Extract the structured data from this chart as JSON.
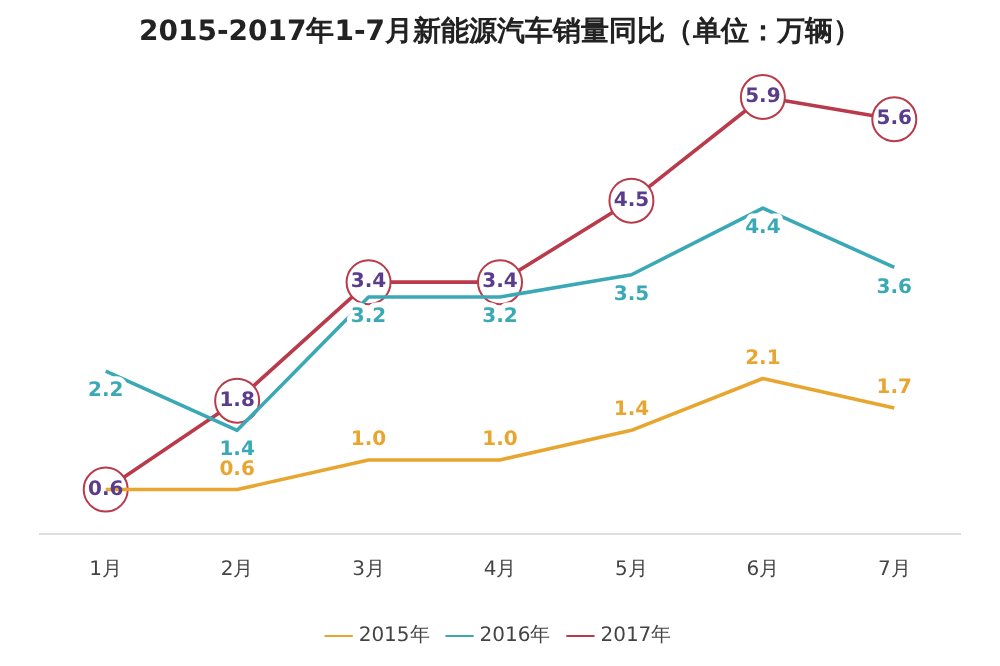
{
  "chart_data": {
    "type": "line",
    "title": "2015-2017年1-7月新能源汽车销量同比（单位：万辆）",
    "categories": [
      "1月",
      "2月",
      "3月",
      "4月",
      "5月",
      "6月",
      "7月"
    ],
    "series": [
      {
        "name": "2015年",
        "color": "#e8a530",
        "marker": "none",
        "values": [
          0.6,
          0.6,
          1.0,
          1.0,
          1.4,
          2.1,
          1.7
        ],
        "value_labels": [
          null,
          "0.6",
          "1.0",
          "1.0",
          "1.4",
          "2.1",
          "1.7"
        ]
      },
      {
        "name": "2016年",
        "color": "#3aa9b5",
        "marker": "none",
        "values": [
          2.2,
          1.4,
          3.2,
          3.2,
          3.5,
          4.4,
          3.6
        ],
        "value_labels": [
          "2.2",
          "1.4",
          "3.2",
          "3.2",
          "3.5",
          "4.4",
          "3.6"
        ]
      },
      {
        "name": "2017年",
        "color": "#b83a4b",
        "marker": "circle",
        "values": [
          0.6,
          1.8,
          3.4,
          3.4,
          4.5,
          5.9,
          5.6
        ],
        "value_labels": [
          "0.6",
          "1.8",
          "3.4",
          "3.4",
          "4.5",
          "5.9",
          "5.6"
        ]
      }
    ],
    "legend": "bottom"
  }
}
